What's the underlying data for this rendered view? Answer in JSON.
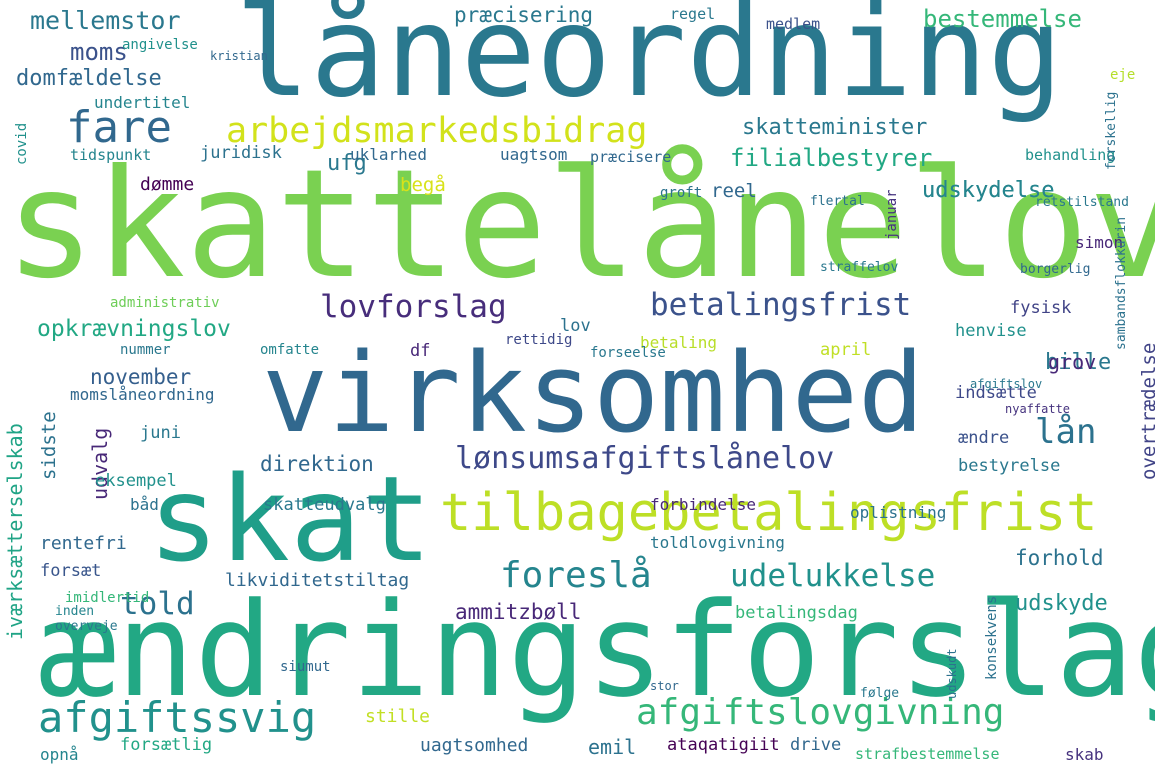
{
  "words": [
    {
      "text": "skattelånelov",
      "color": "#7ad151"
    },
    {
      "text": "ændringsforslag",
      "color": "#22a884"
    },
    {
      "text": "låneordning",
      "color": "#2a788e"
    },
    {
      "text": "virksomhed",
      "color": "#31688e"
    },
    {
      "text": "skat",
      "color": "#1f9e89"
    },
    {
      "text": "tilbagebetalingsfrist",
      "color": "#bddf26"
    },
    {
      "text": "arbejdsmarkedsbidrag",
      "color": "#d2e21b"
    },
    {
      "text": "afgiftssvig",
      "color": "#21918c"
    },
    {
      "text": "afgiftslovgivning",
      "color": "#35b779"
    },
    {
      "text": "lønsumsafgiftslånelov",
      "color": "#3e4989"
    },
    {
      "text": "betalingsfrist",
      "color": "#3b528b"
    },
    {
      "text": "lovforslag",
      "color": "#472d7b"
    },
    {
      "text": "fare",
      "color": "#31688e"
    },
    {
      "text": "foreslå",
      "color": "#25858e"
    },
    {
      "text": "udelukkelse",
      "color": "#21918c"
    },
    {
      "text": "told",
      "color": "#2c728e"
    },
    {
      "text": "lån",
      "color": "#2c728e"
    },
    {
      "text": "mellemstor",
      "color": "#2a788e"
    },
    {
      "text": "moms",
      "color": "#3b528b"
    },
    {
      "text": "domfældelse",
      "color": "#31688e"
    },
    {
      "text": "præcisering",
      "color": "#2a788e"
    },
    {
      "text": "opkrævningslov",
      "color": "#22a884"
    },
    {
      "text": "bestemmelse",
      "color": "#35b779"
    },
    {
      "text": "skatteminister",
      "color": "#2a788e"
    },
    {
      "text": "filialbestyrer",
      "color": "#22a884"
    },
    {
      "text": "udskydelse",
      "color": "#25858e"
    },
    {
      "text": "ammitzbøll",
      "color": "#482878"
    },
    {
      "text": "direktion",
      "color": "#31688e"
    },
    {
      "text": "november",
      "color": "#355f8d"
    },
    {
      "text": "udvalg",
      "color": "#482878"
    },
    {
      "text": "udskyde",
      "color": "#21918c"
    },
    {
      "text": "forhold",
      "color": "#2c728e"
    },
    {
      "text": "iværksætterselskab",
      "color": "#20a486"
    },
    {
      "text": "overtrædelse",
      "color": "#414487"
    },
    {
      "text": "sidste",
      "color": "#2c728e"
    },
    {
      "text": "bille",
      "color": "#2a788e"
    },
    {
      "text": "grov",
      "color": "#482878"
    },
    {
      "text": "likviditetstiltag",
      "color": "#31688e"
    },
    {
      "text": "emil",
      "color": "#2c728e"
    },
    {
      "text": "uagtsomhed",
      "color": "#31688e"
    },
    {
      "text": "ataqatigiit",
      "color": "#440154"
    },
    {
      "text": "drive",
      "color": "#31688e"
    },
    {
      "text": "rentefri",
      "color": "#31688e"
    },
    {
      "text": "forsæt",
      "color": "#39568c"
    },
    {
      "text": "stille",
      "color": "#c2df23"
    },
    {
      "text": "skab",
      "color": "#46327e"
    },
    {
      "text": "strafbestemmelse",
      "color": "#35b779"
    },
    {
      "text": "betalingsdag",
      "color": "#35b779"
    },
    {
      "text": "forsætlig",
      "color": "#22a884"
    },
    {
      "text": "opnå",
      "color": "#25858e"
    },
    {
      "text": "toldlovgivning",
      "color": "#2a788e"
    },
    {
      "text": "forbindelse",
      "color": "#482878"
    },
    {
      "text": "oplistning",
      "color": "#2c728e"
    },
    {
      "text": "skatteudvalg",
      "color": "#2a788e"
    },
    {
      "text": "eksempel",
      "color": "#21918c"
    },
    {
      "text": "båd",
      "color": "#2c728e"
    },
    {
      "text": "juni",
      "color": "#2a788e"
    },
    {
      "text": "momslåneordning",
      "color": "#31688e"
    },
    {
      "text": "df",
      "color": "#482878"
    },
    {
      "text": "lov",
      "color": "#2c728e"
    },
    {
      "text": "betaling",
      "color": "#b8de29"
    },
    {
      "text": "april",
      "color": "#c0df25"
    },
    {
      "text": "henvise",
      "color": "#21918c"
    },
    {
      "text": "indsætte",
      "color": "#3e4989"
    },
    {
      "text": "ændre",
      "color": "#3b528b"
    },
    {
      "text": "bestyrelse",
      "color": "#2a788e"
    },
    {
      "text": "fysisk",
      "color": "#414487"
    },
    {
      "text": "simon",
      "color": "#482878"
    },
    {
      "text": "januar",
      "color": "#46337f"
    },
    {
      "text": "reel",
      "color": "#31688e"
    },
    {
      "text": "udskydelse",
      "color": "#25858e"
    },
    {
      "text": "begå",
      "color": "#d8e219"
    },
    {
      "text": "ufg",
      "color": "#2a788e"
    },
    {
      "text": "dømme",
      "color": "#440154"
    },
    {
      "text": "juridisk",
      "color": "#2c728e"
    },
    {
      "text": "uklarhed",
      "color": "#31688e"
    },
    {
      "text": "uagtsom",
      "color": "#31688e"
    },
    {
      "text": "præcisere",
      "color": "#31688e"
    },
    {
      "text": "undertitel",
      "color": "#25858e"
    },
    {
      "text": "tidspunkt",
      "color": "#25858e"
    },
    {
      "text": "covid",
      "color": "#21918c"
    },
    {
      "text": "angivelse",
      "color": "#21918c"
    },
    {
      "text": "kristian",
      "color": "#31688e"
    },
    {
      "text": "medlem",
      "color": "#3b528b"
    },
    {
      "text": "regel",
      "color": "#2a788e"
    },
    {
      "text": "behandling",
      "color": "#21918c"
    },
    {
      "text": "retstilstand",
      "color": "#2a788e"
    },
    {
      "text": "forskellig",
      "color": "#2c728e"
    },
    {
      "text": "eje",
      "color": "#b5de2b"
    },
    {
      "text": "groft",
      "color": "#2c728e"
    },
    {
      "text": "flertal",
      "color": "#2c728e"
    },
    {
      "text": "administrativ",
      "color": "#6ece58"
    },
    {
      "text": "nummer",
      "color": "#2a788e"
    },
    {
      "text": "omfatte",
      "color": "#25858e"
    },
    {
      "text": "rettidig",
      "color": "#3e4989"
    },
    {
      "text": "forseelse",
      "color": "#2a788e"
    },
    {
      "text": "sambandsflokkurin",
      "color": "#2c728e"
    },
    {
      "text": "konsekvens",
      "color": "#2c728e"
    },
    {
      "text": "straffelov",
      "color": "#2a788e"
    },
    {
      "text": "borgerlig",
      "color": "#31688e"
    },
    {
      "text": "imidlertid",
      "color": "#35b779"
    },
    {
      "text": "inden",
      "color": "#25858e"
    },
    {
      "text": "overveje",
      "color": "#2a788e"
    },
    {
      "text": "siumut",
      "color": "#31688e"
    },
    {
      "text": "udskudt",
      "color": "#2c728e"
    },
    {
      "text": "følge",
      "color": "#2a788e"
    },
    {
      "text": "stor",
      "color": "#31688e"
    },
    {
      "text": "afgiftslov",
      "color": "#2a788e"
    },
    {
      "text": "nyaffatte",
      "color": "#46337f"
    }
  ]
}
